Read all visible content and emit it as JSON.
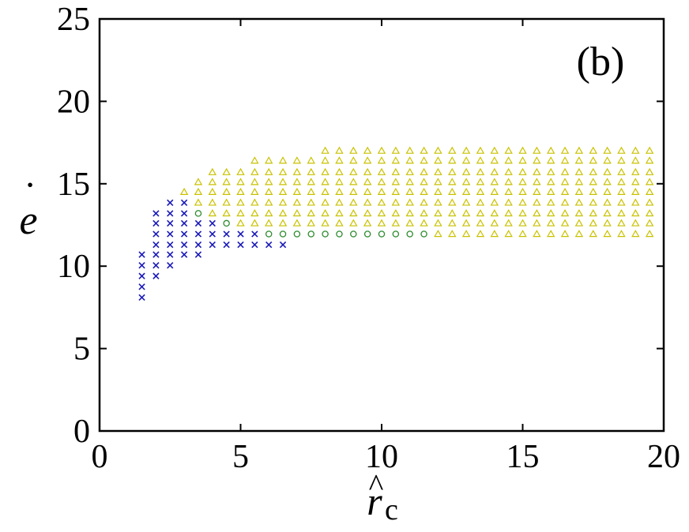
{
  "chart_data": {
    "type": "scatter",
    "panel_label": "(b)",
    "xlabel": {
      "base": "r",
      "accent": "^",
      "subscript": "c"
    },
    "ylabel": {
      "base": "e",
      "accent": "˙"
    },
    "xlim": [
      0,
      20
    ],
    "ylim": [
      0,
      25
    ],
    "xticks": [
      0,
      5,
      10,
      15,
      20
    ],
    "yticks": [
      0,
      5,
      10,
      15,
      20,
      25
    ],
    "xtick_labels": [
      "0",
      "5",
      "10",
      "15",
      "20"
    ],
    "ytick_labels": [
      "0",
      "5",
      "10",
      "15",
      "20",
      "25"
    ],
    "grid": false,
    "legend": "none",
    "series": [
      {
        "marker": "x",
        "color": "#1a1ab8",
        "columns": [
          {
            "x": 1.5,
            "y": [
              8.1,
              8.75,
              9.4,
              10.05,
              10.7
            ]
          },
          {
            "x": 2.0,
            "y": [
              9.4,
              10.05,
              10.7,
              11.3,
              11.95,
              12.6,
              13.2
            ]
          },
          {
            "x": 2.5,
            "y": [
              10.05,
              10.7,
              11.3,
              11.95,
              12.6,
              13.2,
              13.85
            ]
          },
          {
            "x": 3.0,
            "y": [
              10.7,
              11.3,
              11.95,
              12.6,
              13.2,
              13.85
            ]
          },
          {
            "x": 3.5,
            "y": [
              10.7,
              11.3,
              11.95,
              12.6
            ]
          },
          {
            "x": 4.0,
            "y": [
              11.3,
              11.95,
              12.6
            ]
          },
          {
            "x": 4.5,
            "y": [
              11.3,
              11.95
            ]
          },
          {
            "x": 5.0,
            "y": [
              11.3,
              11.95
            ]
          },
          {
            "x": 5.5,
            "y": [
              11.3,
              11.95
            ]
          },
          {
            "x": 6.0,
            "y": [
              11.3
            ]
          },
          {
            "x": 6.5,
            "y": [
              11.3
            ]
          }
        ]
      },
      {
        "marker": "circle",
        "color": "#2e8b2e",
        "columns": [
          {
            "x": 3.5,
            "y": [
              13.2
            ]
          },
          {
            "x": 4.5,
            "y": [
              12.6
            ]
          },
          {
            "x": 6.0,
            "y": [
              11.95
            ]
          },
          {
            "x": 6.5,
            "y": [
              11.95
            ]
          },
          {
            "x": 7.0,
            "y": [
              11.95
            ]
          },
          {
            "x": 7.5,
            "y": [
              11.95
            ]
          },
          {
            "x": 8.0,
            "y": [
              11.95
            ]
          },
          {
            "x": 8.5,
            "y": [
              11.95
            ]
          },
          {
            "x": 9.0,
            "y": [
              11.95
            ]
          },
          {
            "x": 9.5,
            "y": [
              11.95
            ]
          },
          {
            "x": 10.0,
            "y": [
              11.95
            ]
          },
          {
            "x": 10.5,
            "y": [
              11.95
            ]
          },
          {
            "x": 11.0,
            "y": [
              11.95
            ]
          },
          {
            "x": 11.5,
            "y": [
              11.95
            ]
          }
        ]
      },
      {
        "marker": "triangle",
        "color": "#c9c200",
        "columns": [
          {
            "x": 3.0,
            "y": [
              14.5
            ]
          },
          {
            "x": 3.5,
            "y": [
              13.85,
              14.5,
              15.1
            ]
          },
          {
            "x": 4.0,
            "y": [
              13.2,
              13.85,
              14.5,
              15.1,
              15.7
            ]
          },
          {
            "x": 4.5,
            "y": [
              13.2,
              13.85,
              14.5,
              15.1,
              15.7
            ]
          },
          {
            "x": 5.0,
            "y": [
              12.6,
              13.2,
              13.85,
              14.5,
              15.1,
              15.7
            ]
          },
          {
            "x": 5.5,
            "y": [
              12.6,
              13.2,
              13.85,
              14.5,
              15.1,
              15.7,
              16.4
            ]
          },
          {
            "x": 6.0,
            "y": [
              12.6,
              13.2,
              13.85,
              14.5,
              15.1,
              15.7,
              16.4
            ]
          },
          {
            "x": 6.5,
            "y": [
              12.6,
              13.2,
              13.85,
              14.5,
              15.1,
              15.7,
              16.4
            ]
          },
          {
            "x": 7.0,
            "y": [
              12.6,
              13.2,
              13.85,
              14.5,
              15.1,
              15.7,
              16.4
            ]
          },
          {
            "x": 7.5,
            "y": [
              12.6,
              13.2,
              13.85,
              14.5,
              15.1,
              15.7,
              16.4
            ]
          },
          {
            "x": 8.0,
            "y": [
              12.6,
              13.2,
              13.85,
              14.5,
              15.1,
              15.7,
              16.4,
              17.0
            ]
          },
          {
            "x": 8.5,
            "y": [
              12.6,
              13.2,
              13.85,
              14.5,
              15.1,
              15.7,
              16.4,
              17.0
            ]
          },
          {
            "x": 9.0,
            "y": [
              12.6,
              13.2,
              13.85,
              14.5,
              15.1,
              15.7,
              16.4,
              17.0
            ]
          },
          {
            "x": 9.5,
            "y": [
              12.6,
              13.2,
              13.85,
              14.5,
              15.1,
              15.7,
              16.4,
              17.0
            ]
          },
          {
            "x": 10.0,
            "y": [
              12.6,
              13.2,
              13.85,
              14.5,
              15.1,
              15.7,
              16.4,
              17.0
            ]
          },
          {
            "x": 10.5,
            "y": [
              12.6,
              13.2,
              13.85,
              14.5,
              15.1,
              15.7,
              16.4,
              17.0
            ]
          },
          {
            "x": 11.0,
            "y": [
              12.6,
              13.2,
              13.85,
              14.5,
              15.1,
              15.7,
              16.4,
              17.0
            ]
          },
          {
            "x": 11.5,
            "y": [
              12.6,
              13.2,
              13.85,
              14.5,
              15.1,
              15.7,
              16.4,
              17.0
            ]
          },
          {
            "x": 12.0,
            "y": [
              11.95,
              12.6,
              13.2,
              13.85,
              14.5,
              15.1,
              15.7,
              16.4,
              17.0
            ]
          },
          {
            "x": 12.5,
            "y": [
              11.95,
              12.6,
              13.2,
              13.85,
              14.5,
              15.1,
              15.7,
              16.4,
              17.0
            ]
          },
          {
            "x": 13.0,
            "y": [
              11.95,
              12.6,
              13.2,
              13.85,
              14.5,
              15.1,
              15.7,
              16.4,
              17.0
            ]
          },
          {
            "x": 13.5,
            "y": [
              11.95,
              12.6,
              13.2,
              13.85,
              14.5,
              15.1,
              15.7,
              16.4,
              17.0
            ]
          },
          {
            "x": 14.0,
            "y": [
              11.95,
              12.6,
              13.2,
              13.85,
              14.5,
              15.1,
              15.7,
              16.4,
              17.0
            ]
          },
          {
            "x": 14.5,
            "y": [
              11.95,
              12.6,
              13.2,
              13.85,
              14.5,
              15.1,
              15.7,
              16.4,
              17.0
            ]
          },
          {
            "x": 15.0,
            "y": [
              11.95,
              12.6,
              13.2,
              13.85,
              14.5,
              15.1,
              15.7,
              16.4,
              17.0
            ]
          },
          {
            "x": 15.5,
            "y": [
              11.95,
              12.6,
              13.2,
              13.85,
              14.5,
              15.1,
              15.7,
              16.4,
              17.0
            ]
          },
          {
            "x": 16.0,
            "y": [
              11.95,
              12.6,
              13.2,
              13.85,
              14.5,
              15.1,
              15.7,
              16.4,
              17.0
            ]
          },
          {
            "x": 16.5,
            "y": [
              11.95,
              12.6,
              13.2,
              13.85,
              14.5,
              15.1,
              15.7,
              16.4,
              17.0
            ]
          },
          {
            "x": 17.0,
            "y": [
              11.95,
              12.6,
              13.2,
              13.85,
              14.5,
              15.1,
              15.7,
              16.4,
              17.0
            ]
          },
          {
            "x": 17.5,
            "y": [
              11.95,
              12.6,
              13.2,
              13.85,
              14.5,
              15.1,
              15.7,
              16.4,
              17.0
            ]
          },
          {
            "x": 18.0,
            "y": [
              11.95,
              12.6,
              13.2,
              13.85,
              14.5,
              15.1,
              15.7,
              16.4,
              17.0
            ]
          },
          {
            "x": 18.5,
            "y": [
              11.95,
              12.6,
              13.2,
              13.85,
              14.5,
              15.1,
              15.7,
              16.4,
              17.0
            ]
          },
          {
            "x": 19.0,
            "y": [
              11.95,
              12.6,
              13.2,
              13.85,
              14.5,
              15.1,
              15.7,
              16.4,
              17.0
            ]
          },
          {
            "x": 19.5,
            "y": [
              11.95,
              12.6,
              13.2,
              13.85,
              14.5,
              15.1,
              15.7,
              16.4,
              17.0
            ]
          }
        ]
      }
    ]
  }
}
